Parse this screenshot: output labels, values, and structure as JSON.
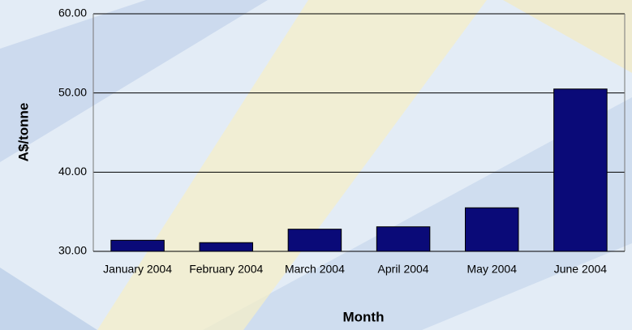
{
  "chart_data": {
    "type": "bar",
    "x_label": "Month",
    "y_label": "A$/tonne",
    "categories": [
      "January 2004",
      "February 2004",
      "March 2004",
      "April 2004",
      "May 2004",
      "June 2004"
    ],
    "values": [
      31.4,
      31.1,
      32.8,
      33.1,
      35.5,
      50.5
    ],
    "color": "#0a0a78",
    "ylim": [
      30,
      60
    ],
    "yticks": [
      {
        "value": 30,
        "label": "30.00"
      },
      {
        "value": 40,
        "label": "40.00"
      },
      {
        "value": 50,
        "label": "50.00"
      },
      {
        "value": 60,
        "label": "60.00"
      }
    ],
    "grid": true
  }
}
